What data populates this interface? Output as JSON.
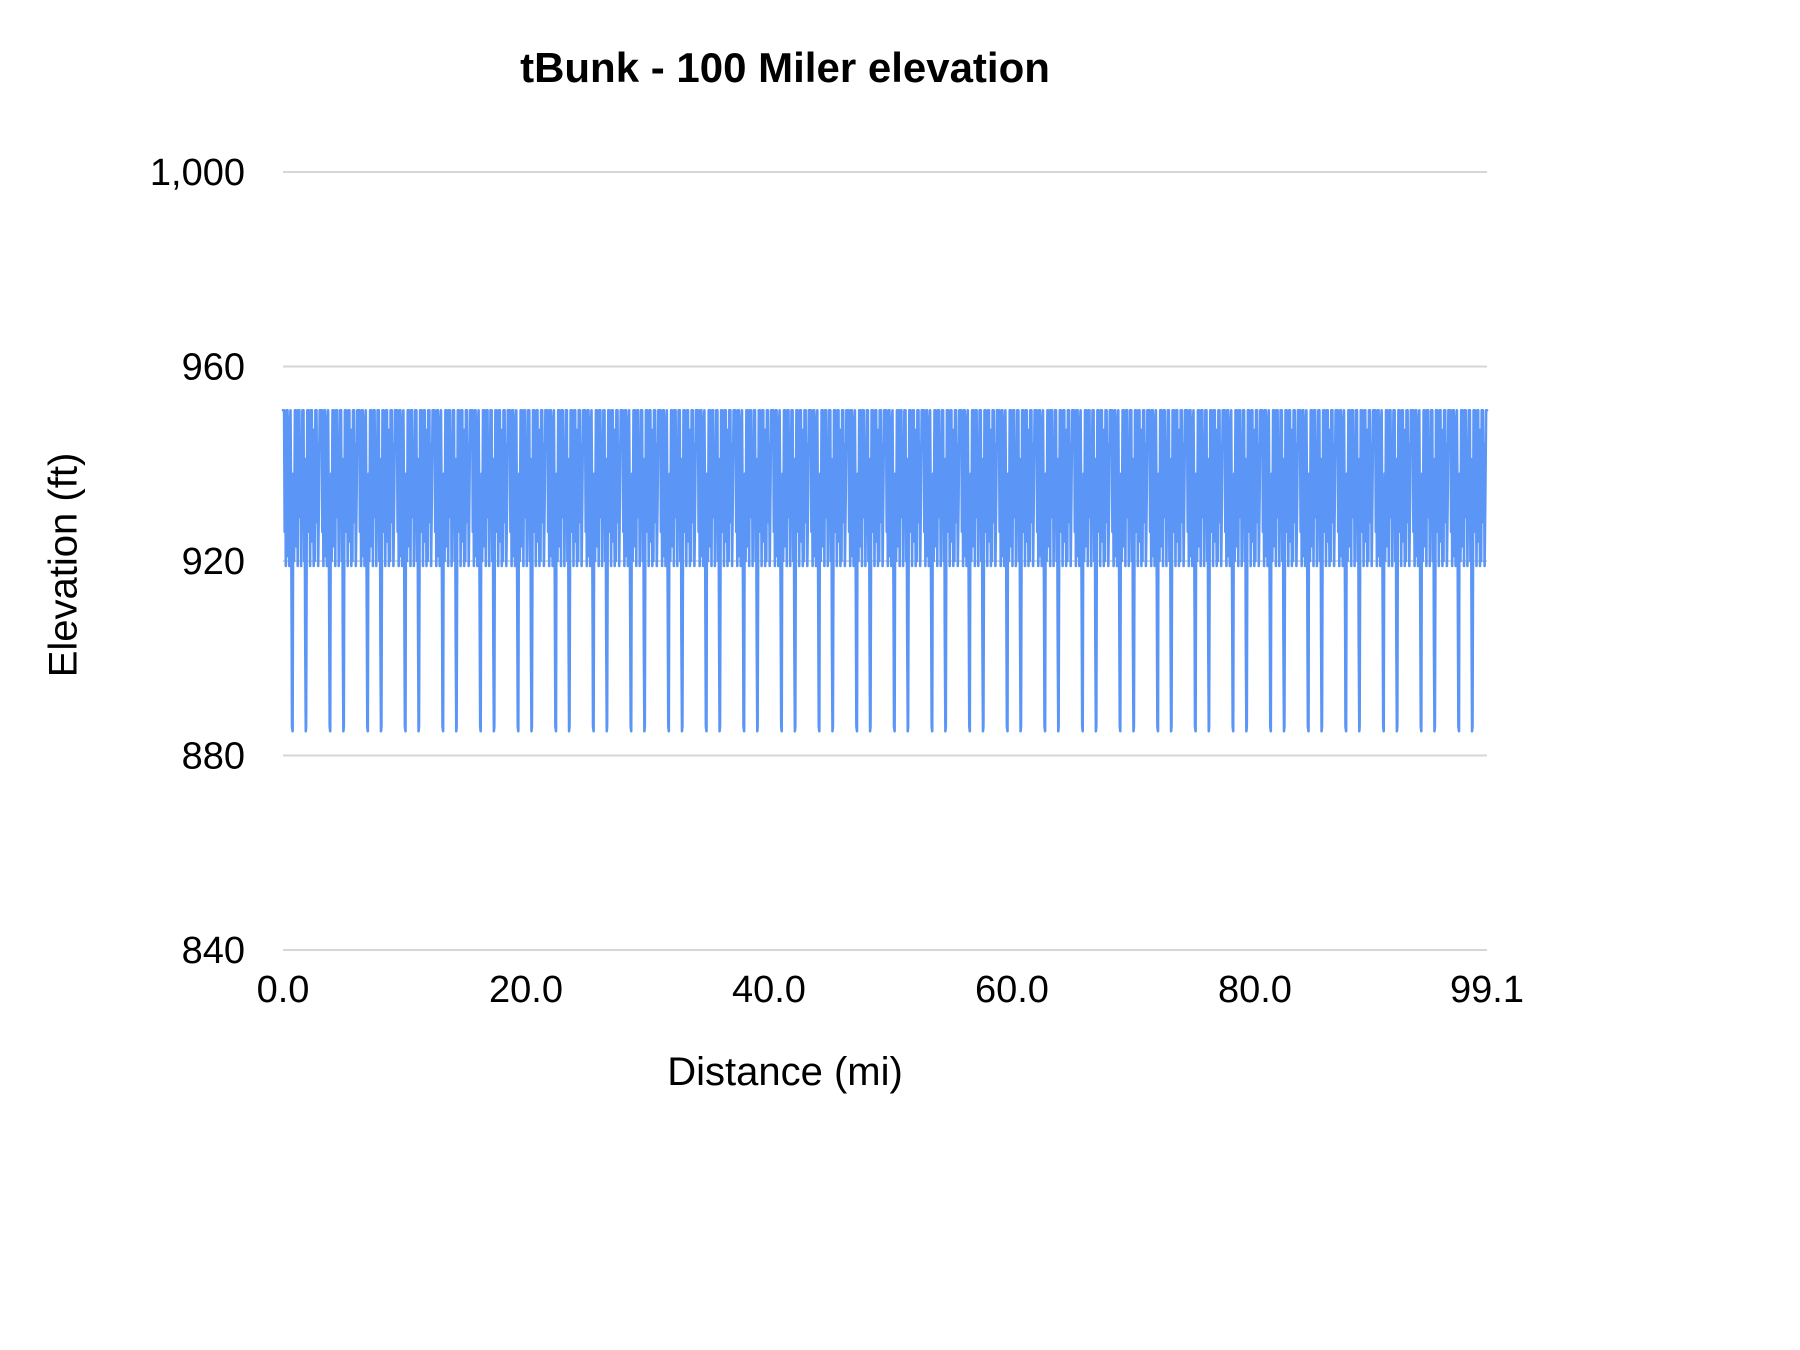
{
  "chart_data": {
    "type": "line",
    "title": "tBunk - 100 Miler elevation",
    "xlabel": "Distance (mi)",
    "ylabel": "Elevation (ft)",
    "xlim": [
      0,
      99.1
    ],
    "ylim": [
      840,
      1000
    ],
    "x_ticks": [
      "0.0",
      "20.0",
      "40.0",
      "60.0",
      "80.0",
      "99.1"
    ],
    "x_tick_values": [
      0,
      20,
      40,
      60,
      80,
      99.1
    ],
    "y_ticks": [
      "840",
      "880",
      "920",
      "960",
      "1,000"
    ],
    "y_tick_values": [
      840,
      880,
      920,
      960,
      1000
    ],
    "grid": true,
    "legend": "none",
    "background": "#ffffff",
    "line_color": "#5b95f5",
    "grid_color": "#d6d6d6",
    "series_name": "Elevation (ft)",
    "series_min_ft": 885,
    "series_max_ft": 951,
    "num_laps": 32,
    "lap_miles": 3.096875,
    "lap_profile": [
      [
        0,
        951
      ],
      [
        0.03,
        951
      ],
      [
        0.045,
        926
      ],
      [
        0.06,
        947
      ],
      [
        0.075,
        919
      ],
      [
        0.095,
        951
      ],
      [
        0.12,
        951
      ],
      [
        0.135,
        921
      ],
      [
        0.15,
        943
      ],
      [
        0.165,
        919
      ],
      [
        0.18,
        948
      ],
      [
        0.2,
        951
      ],
      [
        0.215,
        932
      ],
      [
        0.23,
        905
      ],
      [
        0.24,
        886
      ],
      [
        0.255,
        885
      ],
      [
        0.265,
        920
      ],
      [
        0.28,
        938
      ],
      [
        0.295,
        920
      ],
      [
        0.315,
        951
      ],
      [
        0.345,
        951
      ],
      [
        0.36,
        923
      ],
      [
        0.375,
        947
      ],
      [
        0.39,
        919
      ],
      [
        0.405,
        951
      ],
      [
        0.435,
        951
      ],
      [
        0.45,
        929
      ],
      [
        0.465,
        944
      ],
      [
        0.48,
        919
      ],
      [
        0.495,
        934
      ],
      [
        0.515,
        951
      ],
      [
        0.545,
        951
      ],
      [
        0.56,
        920
      ],
      [
        0.575,
        941
      ],
      [
        0.59,
        905
      ],
      [
        0.605,
        885
      ],
      [
        0.615,
        886
      ],
      [
        0.63,
        925
      ],
      [
        0.645,
        951
      ],
      [
        0.675,
        951
      ],
      [
        0.69,
        926
      ],
      [
        0.705,
        943
      ],
      [
        0.72,
        919
      ],
      [
        0.74,
        951
      ],
      [
        0.765,
        951
      ],
      [
        0.78,
        924
      ],
      [
        0.795,
        940
      ],
      [
        0.815,
        919
      ],
      [
        0.83,
        947
      ],
      [
        0.845,
        920
      ],
      [
        0.86,
        951
      ],
      [
        0.89,
        951
      ],
      [
        0.905,
        928
      ],
      [
        0.92,
        944
      ],
      [
        0.935,
        919
      ],
      [
        0.955,
        933
      ],
      [
        0.975,
        951
      ],
      [
        1,
        951
      ]
    ]
  }
}
